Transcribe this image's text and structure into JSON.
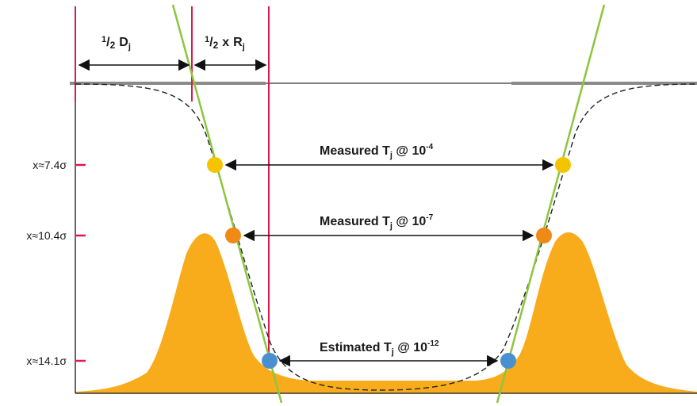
{
  "annotations": {
    "half_d": {
      "num": "1",
      "den": "2",
      "sym": "D",
      "sub": "j"
    },
    "half_r": {
      "num": "1",
      "den": "2",
      "mid": "x",
      "sym": "R",
      "sub": "j"
    }
  },
  "measurements": [
    {
      "id": "m1",
      "prefix": "Measured T",
      "sub": "j",
      "mid": " @ 10",
      "exp": "-4",
      "y_label": "x≈7.4σ",
      "marker_color": "#f5c400"
    },
    {
      "id": "m2",
      "prefix": "Measured T",
      "sub": "j",
      "mid": " @ 10",
      "exp": "-7",
      "y_label": "x≈10.4σ",
      "marker_color": "#f08a17"
    },
    {
      "id": "m3",
      "prefix": "Estimated T",
      "sub": "j",
      "mid": " @ 10",
      "exp": "-12",
      "y_label": "x≈14.1σ",
      "marker_color": "#4a90d0"
    }
  ],
  "colors": {
    "fill": "#f9ac1b",
    "tangent": "#8cc63f",
    "marker_line": "#e0174f",
    "axis": "#333333",
    "baseline": "#8a8a8a",
    "dashed": "#222222",
    "arrow": "#111111"
  }
}
